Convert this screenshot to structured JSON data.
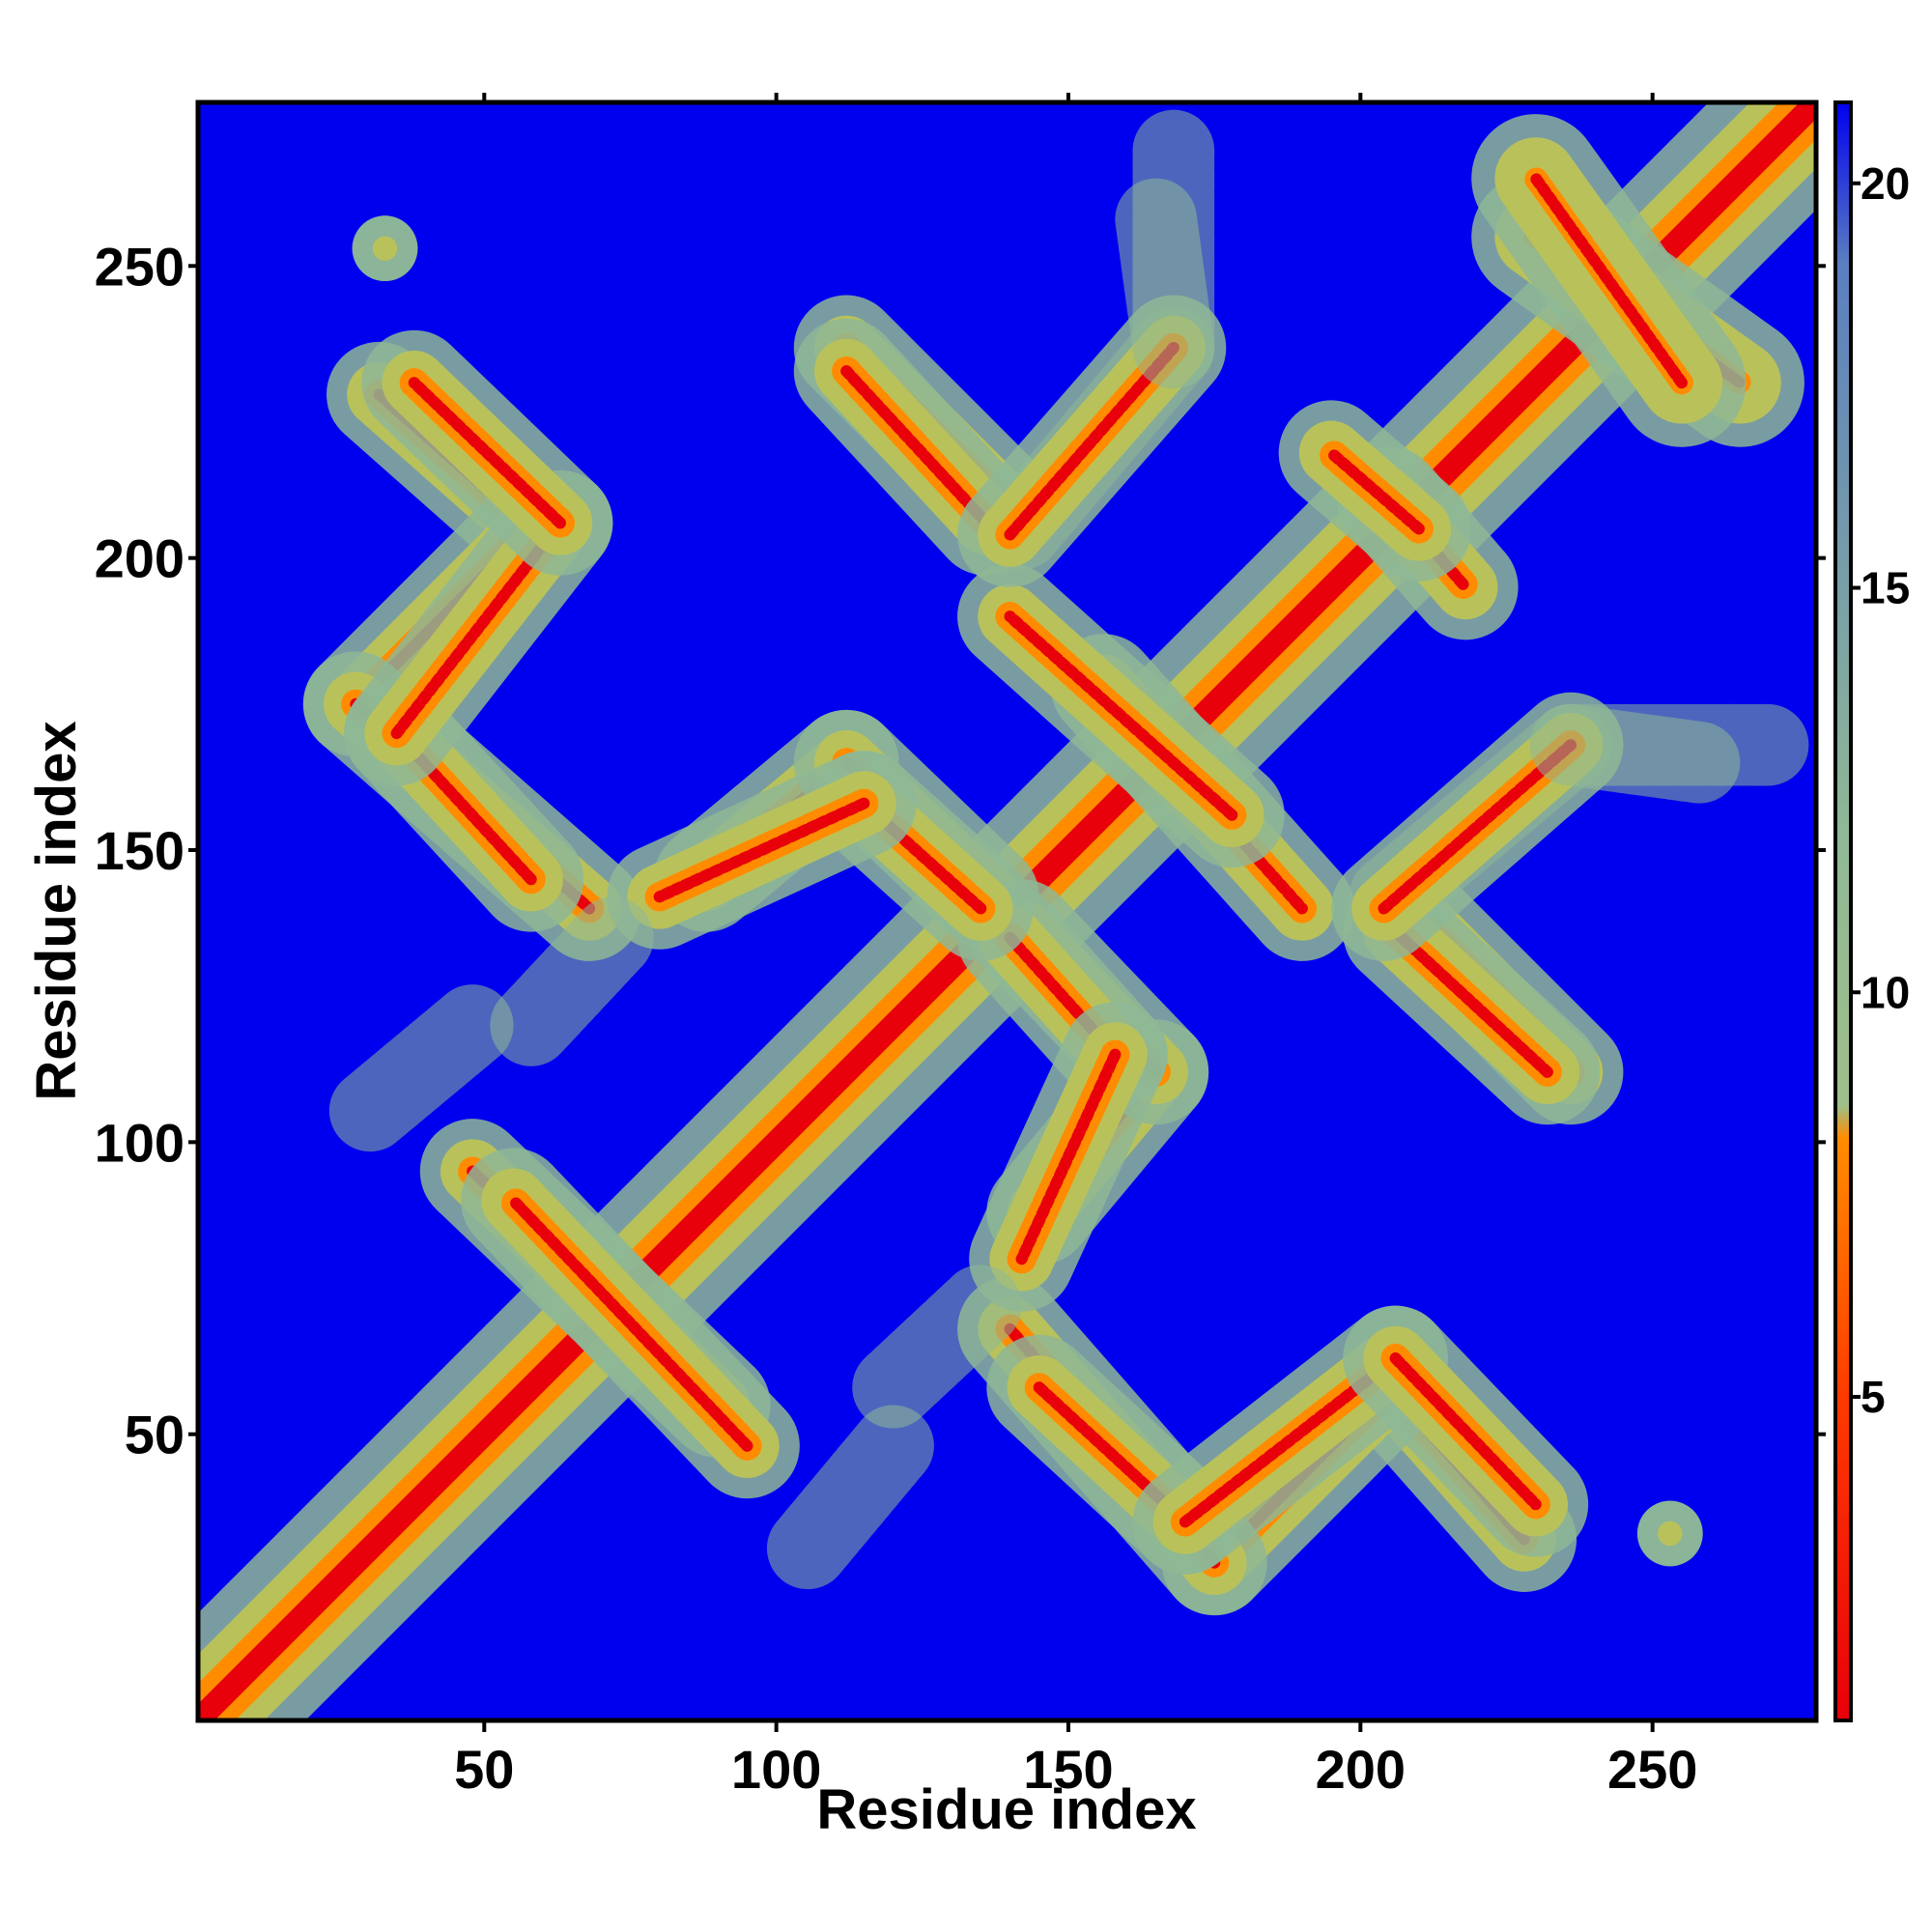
{
  "chart_data": {
    "type": "heatmap",
    "title": "",
    "xlabel": "Residue index",
    "ylabel": "Residue index",
    "xlim": [
      1,
      278
    ],
    "ylim": [
      1,
      278
    ],
    "x_ticks": [
      50,
      100,
      150,
      200,
      250
    ],
    "y_ticks": [
      50,
      100,
      150,
      200,
      250
    ],
    "grid": false,
    "colorbar": {
      "range": [
        1,
        21
      ],
      "ticks": [
        5,
        10,
        15,
        20
      ],
      "colors": {
        "near": "#e8000b",
        "mid": "#ff8c00",
        "far_contact": "#8fb896",
        "background": "#0000ee"
      }
    },
    "contact_bands": [
      {
        "from": [
          1,
          1
        ],
        "to": [
          278,
          278
        ],
        "kind": "diagonal"
      },
      {
        "from": [
          32,
          228
        ],
        "to": [
          58,
          205
        ],
        "kind": "antiparallel"
      },
      {
        "from": [
          58,
          205
        ],
        "to": [
          28,
          175
        ],
        "kind": "parallel"
      },
      {
        "from": [
          28,
          175
        ],
        "to": [
          68,
          140
        ],
        "kind": "antiparallel"
      },
      {
        "from": [
          48,
          120
        ],
        "to": [
          30,
          105
        ],
        "kind": "weak"
      },
      {
        "from": [
          48,
          95
        ],
        "to": [
          90,
          55
        ],
        "kind": "antiparallel"
      },
      {
        "from": [
          88,
          145
        ],
        "to": [
          112,
          165
        ],
        "kind": "parallel"
      },
      {
        "from": [
          112,
          165
        ],
        "to": [
          136,
          142
        ],
        "kind": "antiparallel"
      },
      {
        "from": [
          140,
          135
        ],
        "to": [
          158,
          115
        ],
        "kind": "antiparallel"
      },
      {
        "from": [
          158,
          115
        ],
        "to": [
          142,
          80
        ],
        "kind": "antiparallel"
      },
      {
        "from": [
          112,
          236
        ],
        "to": [
          138,
          210
        ],
        "kind": "antiparallel"
      },
      {
        "from": [
          142,
          205
        ],
        "to": [
          168,
          236
        ],
        "kind": "weak"
      },
      {
        "from": [
          165,
          258
        ],
        "to": [
          168,
          236
        ],
        "kind": "weak"
      },
      {
        "from": [
          145,
          58
        ],
        "to": [
          170,
          35
        ],
        "kind": "antiparallel"
      },
      {
        "from": [
          170,
          35
        ],
        "to": [
          206,
          63
        ],
        "kind": "parallel"
      },
      {
        "from": [
          206,
          63
        ],
        "to": [
          230,
          38
        ],
        "kind": "antiparallel"
      },
      {
        "from": [
          120,
          58
        ],
        "to": [
          135,
          72
        ],
        "kind": "weak"
      },
      {
        "from": [
          156,
          178
        ],
        "to": [
          190,
          140
        ],
        "kind": "antiparallel"
      },
      {
        "from": [
          205,
          210
        ],
        "to": [
          218,
          195
        ],
        "kind": "antiparallel"
      },
      {
        "from": [
          206,
          136
        ],
        "to": [
          232,
          112
        ],
        "kind": "antiparallel"
      },
      {
        "from": [
          204,
          140
        ],
        "to": [
          236,
          168
        ],
        "kind": "parallel"
      },
      {
        "from": [
          236,
          168
        ],
        "to": [
          270,
          168
        ],
        "kind": "weak"
      },
      {
        "from": [
          230,
          255
        ],
        "to": [
          265,
          230
        ],
        "kind": "cluster"
      },
      {
        "from": [
          33,
          253
        ],
        "to": [
          33,
          253
        ],
        "kind": "isolated"
      },
      {
        "from": [
          253,
          33
        ],
        "to": [
          253,
          33
        ],
        "kind": "isolated"
      }
    ]
  }
}
